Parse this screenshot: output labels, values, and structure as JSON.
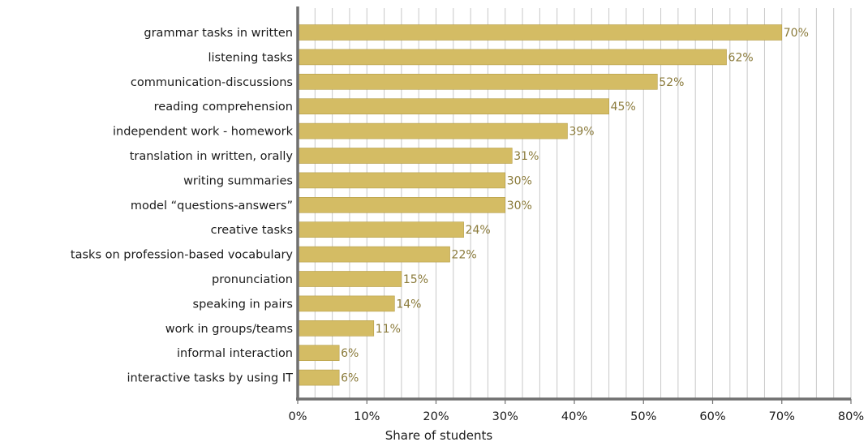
{
  "chart_data": {
    "type": "bar",
    "orientation": "horizontal",
    "title": "",
    "xlabel": "Share of students",
    "ylabel": "",
    "xlim": [
      0,
      80
    ],
    "xticks": [
      "0%",
      "10%",
      "20%",
      "30%",
      "40%",
      "50%",
      "60%",
      "70%",
      "80%"
    ],
    "grid": true,
    "bar_color": "#d4bc64",
    "label_color": "#8a7a3a",
    "categories": [
      "grammar tasks in written",
      "listening tasks",
      "communication-discussions",
      "reading comprehension",
      "independent work - homework",
      "translation in written, orally",
      "writing summaries",
      "model “questions-answers”",
      "creative tasks",
      "tasks on profession-based vocabulary",
      "pronunciation",
      "speaking in pairs",
      "work in groups/teams",
      "informal interaction",
      "interactive tasks by using IT"
    ],
    "values": [
      70,
      62,
      52,
      45,
      39,
      31,
      30,
      30,
      24,
      22,
      15,
      14,
      11,
      6,
      6
    ],
    "value_labels": [
      "70%",
      "62%",
      "52%",
      "45%",
      "39%",
      "31%",
      "30%",
      "30%",
      "24%",
      "22%",
      "15%",
      "14%",
      "11%",
      "6%",
      "6%"
    ]
  }
}
